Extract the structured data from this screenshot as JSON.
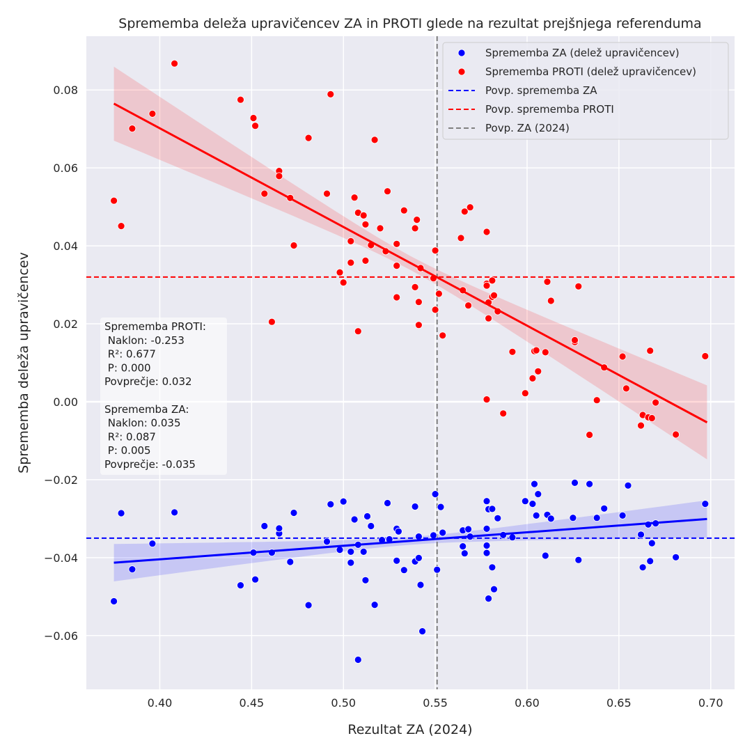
{
  "chart_data": {
    "type": "scatter",
    "title": "Sprememba deleža upravičencev ZA in PROTI glede na rezultat prejšnjega referenduma",
    "xlabel": "Rezultat ZA (2024)",
    "ylabel": "Sprememba deleža upravičencev",
    "xlim": [
      0.36,
      0.713
    ],
    "ylim": [
      -0.0738,
      0.0938
    ],
    "x_ticks": [
      0.4,
      0.45,
      0.5,
      0.55,
      0.6,
      0.65,
      0.7
    ],
    "x_tick_labels": [
      "0.40",
      "0.45",
      "0.50",
      "0.55",
      "0.60",
      "0.65",
      "0.70"
    ],
    "y_ticks": [
      -0.06,
      -0.04,
      -0.02,
      0.0,
      0.02,
      0.04,
      0.06,
      0.08
    ],
    "y_tick_labels": [
      "−0.06",
      "−0.04",
      "−0.02",
      "0.00",
      "0.02",
      "0.04",
      "0.06",
      "0.08"
    ],
    "grid": true,
    "legend_position": "top-right",
    "legend": [
      {
        "label": "Sprememba ZA (delež upravičencev)",
        "kind": "dot",
        "color": "#0000ff"
      },
      {
        "label": "Sprememba PROTI (delež upravičencev)",
        "kind": "dot",
        "color": "#ff0000"
      },
      {
        "label": "Povp. sprememba ZA",
        "kind": "dash",
        "color": "#0000ff"
      },
      {
        "label": "Povp. sprememba PROTI",
        "kind": "dash",
        "color": "#ff0000"
      },
      {
        "label": "Povp. ZA (2024)",
        "kind": "dash",
        "color": "#808080"
      }
    ],
    "reference_lines": {
      "mean_za_change": -0.035,
      "mean_proti_change": 0.032,
      "mean_za_2024": 0.551
    },
    "series": [
      {
        "name": "Sprememba ZA (delež upravičencev)",
        "color": "#0000ff",
        "regression": {
          "x": [
            0.375,
            0.698
          ],
          "y": [
            -0.0413,
            -0.0301
          ],
          "ci_half_width_ends": 0.0048,
          "ci_half_width_mid": 0.001
        },
        "points": [
          [
            0.375,
            -0.0512
          ],
          [
            0.379,
            -0.0286
          ],
          [
            0.385,
            -0.043
          ],
          [
            0.396,
            -0.0364
          ],
          [
            0.408,
            -0.0284
          ],
          [
            0.444,
            -0.0471
          ],
          [
            0.451,
            -0.0387
          ],
          [
            0.452,
            -0.0456
          ],
          [
            0.457,
            -0.0319
          ],
          [
            0.461,
            -0.0387
          ],
          [
            0.465,
            -0.0338
          ],
          [
            0.465,
            -0.0325
          ],
          [
            0.471,
            -0.0411
          ],
          [
            0.473,
            -0.0285
          ],
          [
            0.481,
            -0.0522
          ],
          [
            0.491,
            -0.0359
          ],
          [
            0.493,
            -0.0263
          ],
          [
            0.498,
            -0.038
          ],
          [
            0.5,
            -0.0256
          ],
          [
            0.504,
            -0.0413
          ],
          [
            0.504,
            -0.0385
          ],
          [
            0.506,
            -0.0302
          ],
          [
            0.508,
            -0.0367
          ],
          [
            0.508,
            -0.0662
          ],
          [
            0.511,
            -0.0385
          ],
          [
            0.512,
            -0.0458
          ],
          [
            0.513,
            -0.0294
          ],
          [
            0.515,
            -0.0319
          ],
          [
            0.517,
            -0.0521
          ],
          [
            0.521,
            -0.0355
          ],
          [
            0.524,
            -0.026
          ],
          [
            0.525,
            -0.0353
          ],
          [
            0.529,
            -0.0326
          ],
          [
            0.529,
            -0.0408
          ],
          [
            0.53,
            -0.0333
          ],
          [
            0.533,
            -0.0432
          ],
          [
            0.539,
            -0.041
          ],
          [
            0.539,
            -0.0269
          ],
          [
            0.541,
            -0.0346
          ],
          [
            0.541,
            -0.0401
          ],
          [
            0.542,
            -0.047
          ],
          [
            0.543,
            -0.0589
          ],
          [
            0.549,
            -0.0343
          ],
          [
            0.55,
            -0.0237
          ],
          [
            0.551,
            -0.0431
          ],
          [
            0.553,
            -0.027
          ],
          [
            0.554,
            -0.0336
          ],
          [
            0.565,
            -0.033
          ],
          [
            0.565,
            -0.0371
          ],
          [
            0.566,
            -0.0389
          ],
          [
            0.568,
            -0.0327
          ],
          [
            0.569,
            -0.0346
          ],
          [
            0.578,
            -0.0255
          ],
          [
            0.578,
            -0.0326
          ],
          [
            0.578,
            -0.0369
          ],
          [
            0.578,
            -0.0388
          ],
          [
            0.579,
            -0.0505
          ],
          [
            0.579,
            -0.0276
          ],
          [
            0.581,
            -0.0275
          ],
          [
            0.581,
            -0.0425
          ],
          [
            0.582,
            -0.0481
          ],
          [
            0.584,
            -0.0299
          ],
          [
            0.587,
            -0.0342
          ],
          [
            0.592,
            -0.0348
          ],
          [
            0.599,
            -0.0255
          ],
          [
            0.603,
            -0.0262
          ],
          [
            0.604,
            -0.0211
          ],
          [
            0.605,
            -0.0292
          ],
          [
            0.606,
            -0.0237
          ],
          [
            0.61,
            -0.0395
          ],
          [
            0.611,
            -0.029
          ],
          [
            0.613,
            -0.03
          ],
          [
            0.625,
            -0.0298
          ],
          [
            0.626,
            -0.0208
          ],
          [
            0.628,
            -0.0406
          ],
          [
            0.634,
            -0.0211
          ],
          [
            0.638,
            -0.0298
          ],
          [
            0.642,
            -0.0274
          ],
          [
            0.652,
            -0.0292
          ],
          [
            0.655,
            -0.0215
          ],
          [
            0.662,
            -0.0341
          ],
          [
            0.663,
            -0.0425
          ],
          [
            0.666,
            -0.0315
          ],
          [
            0.667,
            -0.0409
          ],
          [
            0.668,
            -0.0363
          ],
          [
            0.67,
            -0.0312
          ],
          [
            0.681,
            -0.0399
          ],
          [
            0.697,
            -0.0262
          ]
        ]
      },
      {
        "name": "Sprememba PROTI (delež upravičencev)",
        "color": "#ff0000",
        "regression": {
          "x": [
            0.375,
            0.698
          ],
          "y": [
            0.0765,
            -0.0053
          ],
          "ci_half_width_ends": 0.0095,
          "ci_half_width_mid": 0.0018
        },
        "points": [
          [
            0.375,
            0.0516
          ],
          [
            0.379,
            0.0451
          ],
          [
            0.385,
            0.0701
          ],
          [
            0.396,
            0.0739
          ],
          [
            0.408,
            0.0868
          ],
          [
            0.444,
            0.0775
          ],
          [
            0.451,
            0.0728
          ],
          [
            0.452,
            0.0708
          ],
          [
            0.457,
            0.0534
          ],
          [
            0.461,
            0.0205
          ],
          [
            0.465,
            0.0592
          ],
          [
            0.465,
            0.0579
          ],
          [
            0.471,
            0.0523
          ],
          [
            0.473,
            0.0401
          ],
          [
            0.481,
            0.0677
          ],
          [
            0.491,
            0.0534
          ],
          [
            0.493,
            0.0789
          ],
          [
            0.498,
            0.0332
          ],
          [
            0.5,
            0.0306
          ],
          [
            0.504,
            0.0412
          ],
          [
            0.504,
            0.0357
          ],
          [
            0.506,
            0.0524
          ],
          [
            0.508,
            0.0485
          ],
          [
            0.508,
            0.0181
          ],
          [
            0.511,
            0.0478
          ],
          [
            0.512,
            0.0455
          ],
          [
            0.512,
            0.0362
          ],
          [
            0.515,
            0.0402
          ],
          [
            0.517,
            0.0672
          ],
          [
            0.52,
            0.0445
          ],
          [
            0.523,
            0.0386
          ],
          [
            0.524,
            0.054
          ],
          [
            0.529,
            0.0405
          ],
          [
            0.529,
            0.0349
          ],
          [
            0.529,
            0.0268
          ],
          [
            0.533,
            0.0491
          ],
          [
            0.539,
            0.0445
          ],
          [
            0.539,
            0.0294
          ],
          [
            0.54,
            0.0467
          ],
          [
            0.541,
            0.0256
          ],
          [
            0.541,
            0.0197
          ],
          [
            0.542,
            0.0343
          ],
          [
            0.549,
            0.0317
          ],
          [
            0.55,
            0.0236
          ],
          [
            0.55,
            0.0388
          ],
          [
            0.552,
            0.0277
          ],
          [
            0.554,
            0.017
          ],
          [
            0.564,
            0.042
          ],
          [
            0.565,
            0.0286
          ],
          [
            0.566,
            0.0488
          ],
          [
            0.568,
            0.0247
          ],
          [
            0.569,
            0.0499
          ],
          [
            0.578,
            0.0436
          ],
          [
            0.578,
            0.0303
          ],
          [
            0.578,
            0.0298
          ],
          [
            0.579,
            0.0255
          ],
          [
            0.579,
            0.0214
          ],
          [
            0.578,
            0.0006
          ],
          [
            0.581,
            0.0311
          ],
          [
            0.581,
            0.0269
          ],
          [
            0.582,
            0.0273
          ],
          [
            0.584,
            0.0232
          ],
          [
            0.587,
            -0.003
          ],
          [
            0.592,
            0.0128
          ],
          [
            0.599,
            0.0022
          ],
          [
            0.603,
            0.006
          ],
          [
            0.604,
            0.013
          ],
          [
            0.605,
            0.0132
          ],
          [
            0.606,
            0.0078
          ],
          [
            0.61,
            0.0127
          ],
          [
            0.611,
            0.0308
          ],
          [
            0.613,
            0.0259
          ],
          [
            0.626,
            0.0153
          ],
          [
            0.626,
            0.0158
          ],
          [
            0.628,
            0.0296
          ],
          [
            0.634,
            -0.0085
          ],
          [
            0.638,
            0.0004
          ],
          [
            0.642,
            0.0088
          ],
          [
            0.652,
            0.0116
          ],
          [
            0.654,
            0.0034
          ],
          [
            0.662,
            -0.0061
          ],
          [
            0.663,
            -0.0034
          ],
          [
            0.666,
            -0.004
          ],
          [
            0.667,
            0.0131
          ],
          [
            0.668,
            -0.0042
          ],
          [
            0.67,
            -0.0002
          ],
          [
            0.681,
            -0.0084
          ],
          [
            0.697,
            0.0117
          ]
        ]
      }
    ],
    "annotation_lines": [
      "Sprememba PROTI:",
      " Naklon: -0.253",
      " R²: 0.677",
      " P: 0.000",
      "Povprečje: 0.032",
      "",
      "Sprememba ZA:",
      " Naklon: 0.035",
      " R²: 0.087",
      " P: 0.005",
      "Povprečje: -0.035"
    ]
  }
}
